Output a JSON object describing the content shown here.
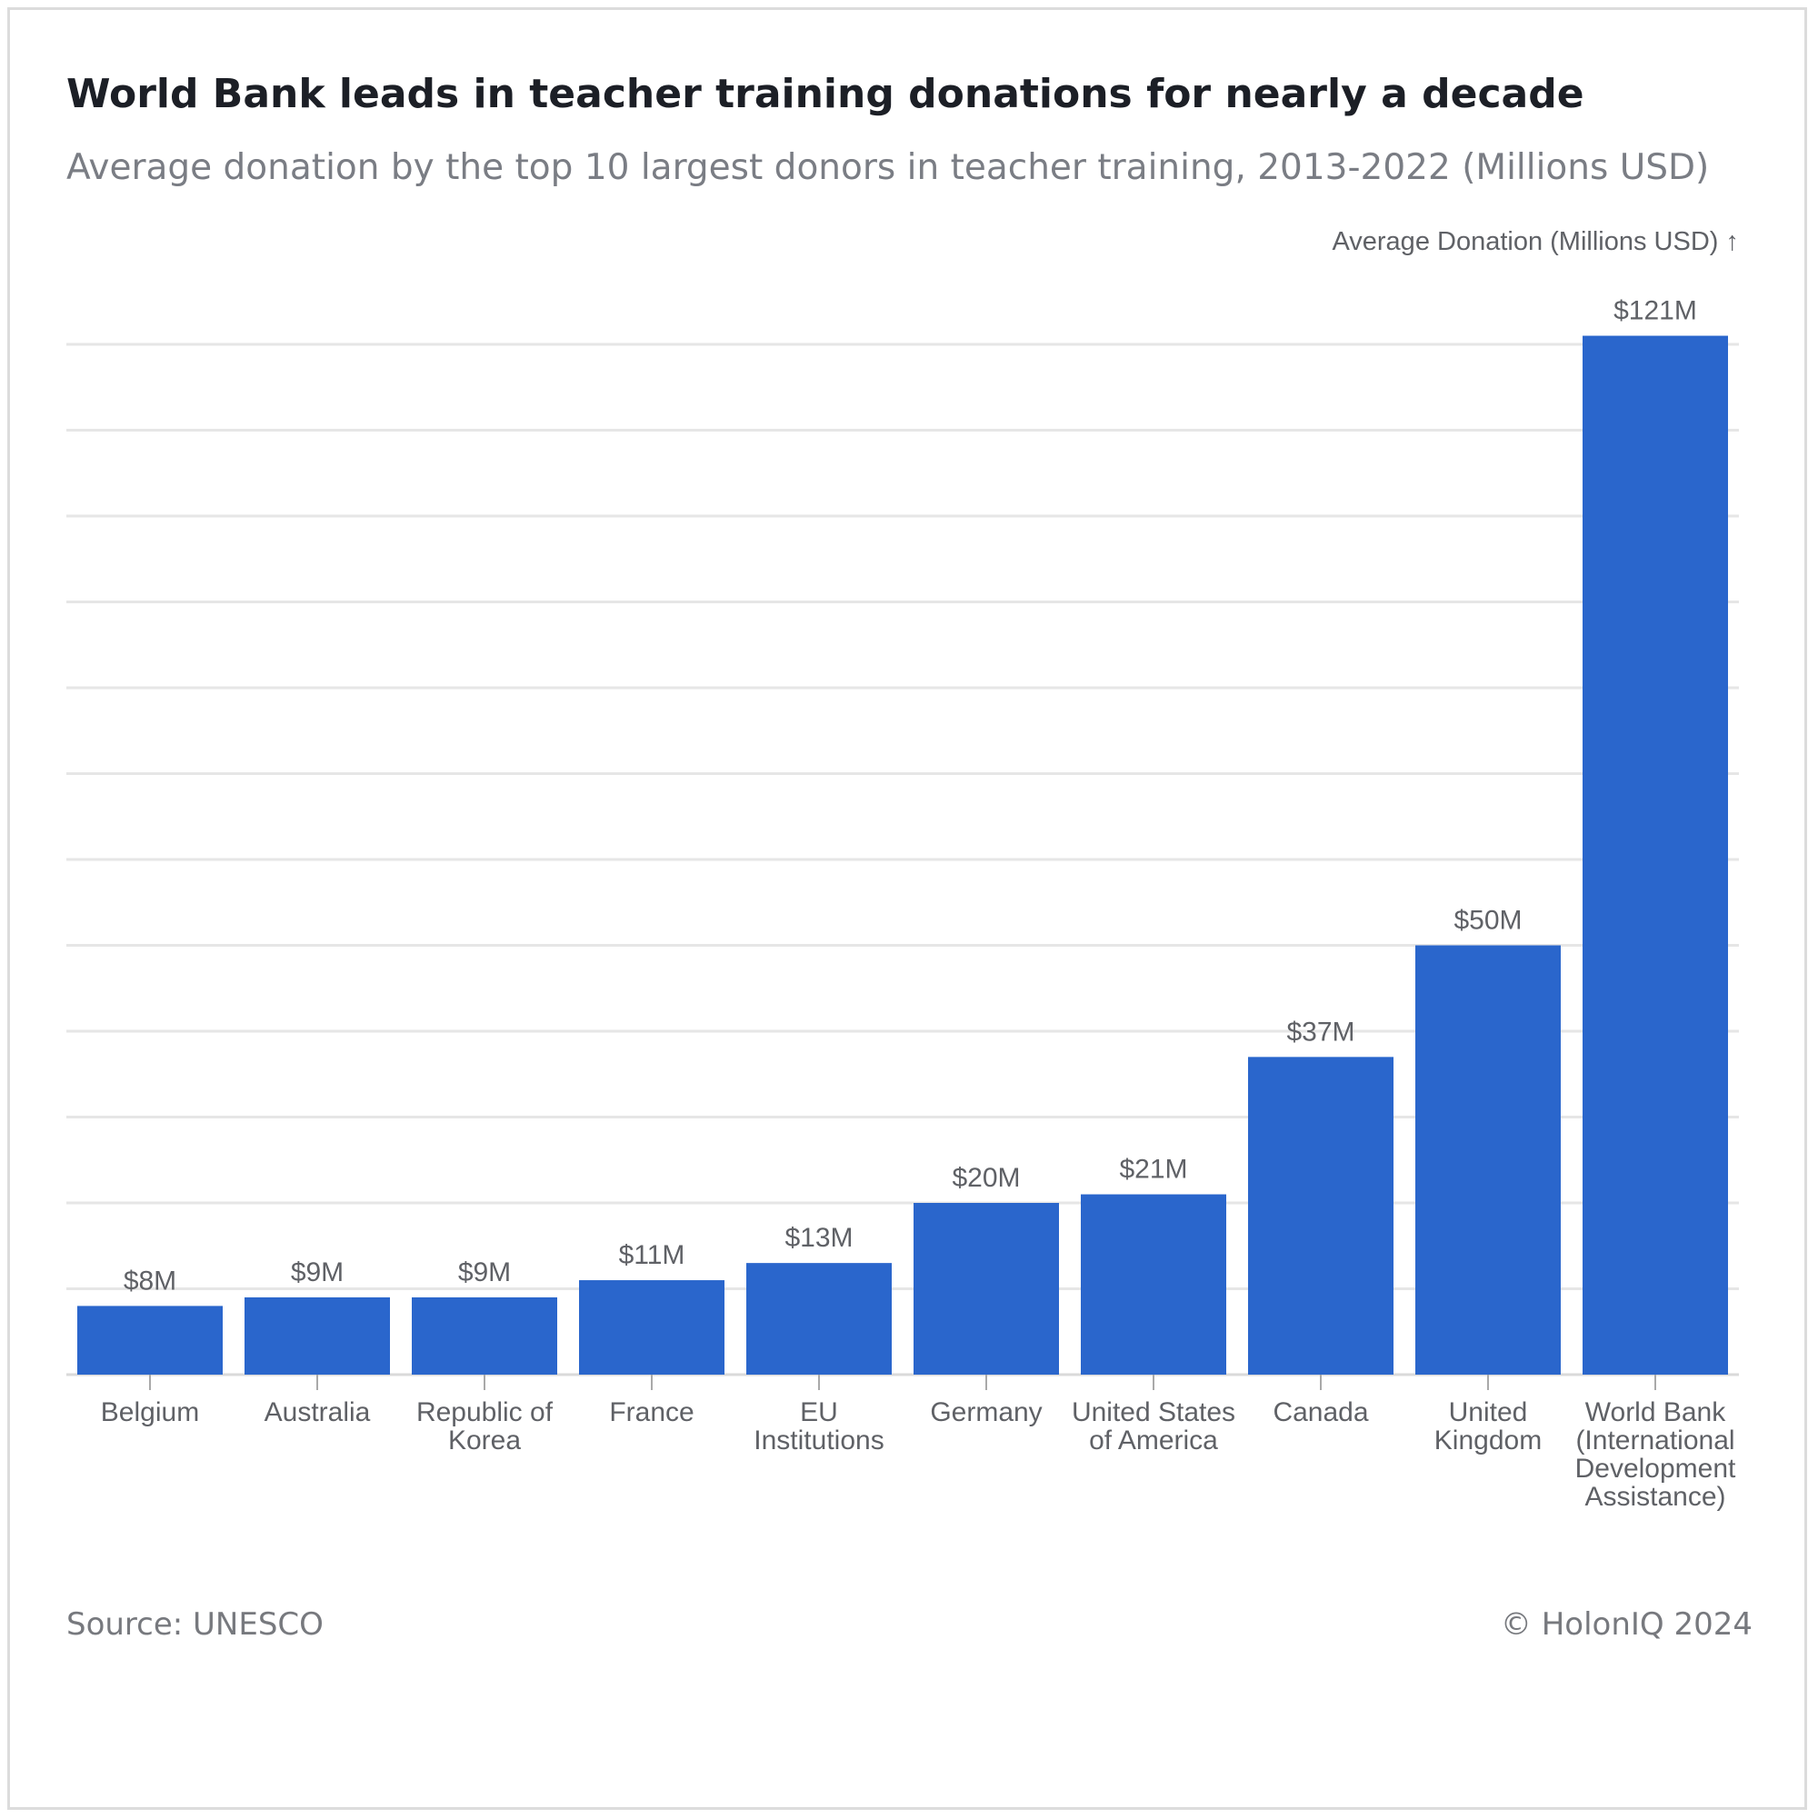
{
  "title": "World Bank leads in teacher training donations for nearly a decade",
  "subtitle": "Average donation by the top 10 largest donors in teacher training, 2013-2022 (Millions USD)",
  "footer": {
    "source": "Source: UNESCO",
    "copyright": "© HolonIQ 2024"
  },
  "colors": {
    "bar": "#2a66cc",
    "grid": "#e6e6e6",
    "text": "#5f6166"
  },
  "chart_data": {
    "type": "bar",
    "ylabel": "Average Donation (Millions USD) ↑",
    "xlabel": "",
    "ylim": [
      0,
      120
    ],
    "y_gridline_step": 10,
    "grid": true,
    "categories": [
      "Belgium",
      "Australia",
      "Republic of Korea",
      "France",
      "EU Institutions",
      "Germany",
      "United States of America",
      "Canada",
      "United Kingdom",
      "World Bank (International Development Assistance)"
    ],
    "category_label_lines": [
      [
        "Belgium"
      ],
      [
        "Australia"
      ],
      [
        "Republic of",
        "Korea"
      ],
      [
        "France"
      ],
      [
        "EU",
        "Institutions"
      ],
      [
        "Germany"
      ],
      [
        "United States",
        "of America"
      ],
      [
        "Canada"
      ],
      [
        "United",
        "Kingdom"
      ],
      [
        "World Bank",
        "(International",
        "Development",
        "Assistance)"
      ]
    ],
    "values": [
      8,
      9,
      9,
      11,
      13,
      20,
      21,
      37,
      50,
      121
    ],
    "data_labels": [
      "$8M",
      "$9M",
      "$9M",
      "$11M",
      "$13M",
      "$20M",
      "$21M",
      "$37M",
      "$50M",
      "$121M"
    ]
  }
}
